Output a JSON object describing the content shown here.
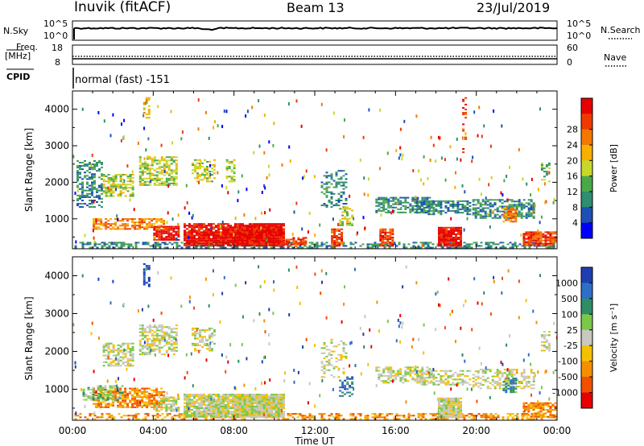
{
  "header": {
    "title": "Inuvik (fitACF)",
    "beam": "Beam 13",
    "date": "23/Jul/2019"
  },
  "nsky_panel": {
    "left_label": "N.Sky",
    "left_ticks": [
      "10^5",
      "10^0"
    ],
    "right_ticks": [
      "10^5",
      "10^0"
    ],
    "right_label": "N.Search"
  },
  "freq_panel": {
    "left_label_top": "Freq.",
    "left_label_unit": "[MHz]",
    "left_ticks": [
      "18",
      "8"
    ],
    "right_ticks": [
      "60",
      "0"
    ],
    "right_label": "Nave"
  },
  "cpid": {
    "label": "CPID",
    "value": "normal (fast) -151"
  },
  "chart_data": [
    {
      "type": "heatmap",
      "name": "power",
      "ylabel": "Slant Range [km]",
      "x_ticks": [
        "00:00",
        "04:00",
        "08:00",
        "12:00",
        "16:00",
        "20:00",
        "00:00"
      ],
      "y_ticks": [
        "1000",
        "2000",
        "3000",
        "4000"
      ],
      "xlim_hours": [
        0,
        24
      ],
      "ylim_km": [
        180,
        4500
      ],
      "colorbar": {
        "label": "Power [dB]",
        "ticks": [
          "4",
          "8",
          "12",
          "16",
          "20",
          "24",
          "28"
        ],
        "colors": [
          "#0000ff",
          "#1f4fb4",
          "#2f8d70",
          "#4aa84a",
          "#c8d82a",
          "#f5b000",
          "#f47800",
          "#ee3a00",
          "#e60000"
        ]
      },
      "blobs": [
        {
          "h0": 0.1,
          "h1": 24,
          "r0": 190,
          "r1": 330,
          "level": 2,
          "density": 0.5
        },
        {
          "h0": 4.0,
          "h1": 5.3,
          "r0": 400,
          "r1": 800,
          "level": 8,
          "density": 0.8
        },
        {
          "h0": 5.5,
          "h1": 10.5,
          "r0": 250,
          "r1": 850,
          "level": 8,
          "density": 0.9
        },
        {
          "h0": 8.0,
          "h1": 10.3,
          "r0": 250,
          "r1": 800,
          "level": 8,
          "density": 0.95
        },
        {
          "h0": 10.3,
          "h1": 11.6,
          "r0": 230,
          "r1": 500,
          "level": 7,
          "density": 0.7
        },
        {
          "h0": 12.8,
          "h1": 13.3,
          "r0": 240,
          "r1": 700,
          "level": 7,
          "density": 0.8
        },
        {
          "h0": 15.2,
          "h1": 15.8,
          "r0": 240,
          "r1": 700,
          "level": 7,
          "density": 0.8
        },
        {
          "h0": 18.1,
          "h1": 19.2,
          "r0": 240,
          "r1": 780,
          "level": 8,
          "density": 0.95
        },
        {
          "h0": 22.3,
          "h1": 23.9,
          "r0": 250,
          "r1": 650,
          "level": 7,
          "density": 0.8
        },
        {
          "h0": 1.0,
          "h1": 4.5,
          "r0": 700,
          "r1": 1000,
          "level": 6,
          "density": 0.7
        },
        {
          "h0": 0.2,
          "h1": 1.5,
          "r0": 1300,
          "r1": 2600,
          "level": 2,
          "density": 0.5
        },
        {
          "h0": 1.5,
          "h1": 3.0,
          "r0": 1600,
          "r1": 2200,
          "level": 4,
          "density": 0.6
        },
        {
          "h0": 3.3,
          "h1": 5.2,
          "r0": 1900,
          "r1": 2700,
          "level": 4,
          "density": 0.6
        },
        {
          "h0": 5.9,
          "h1": 7.0,
          "r0": 2000,
          "r1": 2600,
          "level": 4,
          "density": 0.5
        },
        {
          "h0": 7.6,
          "h1": 8.0,
          "r0": 2000,
          "r1": 2600,
          "level": 4,
          "density": 0.6
        },
        {
          "h0": 12.3,
          "h1": 13.6,
          "r0": 1300,
          "r1": 2300,
          "level": 2,
          "density": 0.35
        },
        {
          "h0": 13.2,
          "h1": 13.8,
          "r0": 800,
          "r1": 1300,
          "level": 4,
          "density": 0.6
        },
        {
          "h0": 15.0,
          "h1": 17.8,
          "r0": 1150,
          "r1": 1600,
          "level": 2,
          "density": 0.6
        },
        {
          "h0": 17.0,
          "h1": 19.7,
          "r0": 1100,
          "r1": 1500,
          "level": 2,
          "density": 0.6
        },
        {
          "h0": 19.8,
          "h1": 22.8,
          "r0": 1000,
          "r1": 1500,
          "level": 2,
          "density": 0.6
        },
        {
          "h0": 21.3,
          "h1": 21.9,
          "r0": 900,
          "r1": 1300,
          "level": 6,
          "density": 0.8
        },
        {
          "h0": 3.5,
          "h1": 3.8,
          "r0": 3700,
          "r1": 4300,
          "level": 5,
          "density": 0.5
        },
        {
          "h0": 23.2,
          "h1": 23.6,
          "r0": 2000,
          "r1": 2500,
          "level": 3,
          "density": 0.5
        },
        {
          "h0": 19.3,
          "h1": 19.5,
          "r0": 2800,
          "r1": 4300,
          "level": 7,
          "density": 0.3
        }
      ]
    },
    {
      "type": "heatmap",
      "name": "velocity",
      "ylabel": "Slant Range [km]",
      "xlabel": "Time UT",
      "x_ticks": [
        "00:00",
        "04:00",
        "08:00",
        "12:00",
        "16:00",
        "20:00",
        "00:00"
      ],
      "y_ticks": [
        "1000",
        "2000",
        "3000",
        "4000"
      ],
      "xlim_hours": [
        0,
        24
      ],
      "ylim_km": [
        180,
        4500
      ],
      "colorbar": {
        "label": "Velocity [m s⁻¹]",
        "ticks": [
          "1000",
          "500",
          "100",
          "25",
          "-25",
          "-100",
          "-500",
          "-1000"
        ],
        "colors": [
          "#1f3fb0",
          "#2f6ec6",
          "#2e8d64",
          "#7ac84a",
          "#c8c8c0",
          "#f5c000",
          "#f49000",
          "#f05000",
          "#e60000"
        ]
      },
      "blobs": [
        {
          "h0": 0.1,
          "h1": 24,
          "r0": 190,
          "r1": 330,
          "level": 6,
          "density": 0.5
        },
        {
          "h0": 5.5,
          "h1": 10.5,
          "r0": 250,
          "r1": 850,
          "level": 4,
          "density": 0.9
        },
        {
          "h0": 8.0,
          "h1": 10.3,
          "r0": 250,
          "r1": 800,
          "level": 4,
          "density": 0.95
        },
        {
          "h0": 18.1,
          "h1": 19.2,
          "r0": 240,
          "r1": 780,
          "level": 4,
          "density": 0.95
        },
        {
          "h0": 1.0,
          "h1": 4.5,
          "r0": 500,
          "r1": 1000,
          "level": 6,
          "density": 0.7
        },
        {
          "h0": 0.5,
          "h1": 2.5,
          "r0": 700,
          "r1": 1100,
          "level": 3,
          "density": 0.4
        },
        {
          "h0": 4.0,
          "h1": 5.3,
          "r0": 400,
          "r1": 800,
          "level": 4,
          "density": 0.6
        },
        {
          "h0": 1.5,
          "h1": 3.0,
          "r0": 1600,
          "r1": 2200,
          "level": 4,
          "density": 0.6
        },
        {
          "h0": 3.3,
          "h1": 5.2,
          "r0": 1900,
          "r1": 2700,
          "level": 4,
          "density": 0.6
        },
        {
          "h0": 5.9,
          "h1": 7.0,
          "r0": 2000,
          "r1": 2600,
          "level": 4,
          "density": 0.5
        },
        {
          "h0": 12.3,
          "h1": 13.6,
          "r0": 1300,
          "r1": 2300,
          "level": 4,
          "density": 0.3
        },
        {
          "h0": 13.2,
          "h1": 13.8,
          "r0": 800,
          "r1": 1300,
          "level": 1,
          "density": 0.5
        },
        {
          "h0": 15.0,
          "h1": 17.8,
          "r0": 1150,
          "r1": 1600,
          "level": 4,
          "density": 0.5
        },
        {
          "h0": 17.0,
          "h1": 19.7,
          "r0": 1100,
          "r1": 1500,
          "level": 4,
          "density": 0.5
        },
        {
          "h0": 19.8,
          "h1": 22.8,
          "r0": 1000,
          "r1": 1500,
          "level": 4,
          "density": 0.5
        },
        {
          "h0": 21.3,
          "h1": 21.9,
          "r0": 900,
          "r1": 1300,
          "level": 2,
          "density": 0.8
        },
        {
          "h0": 22.3,
          "h1": 23.9,
          "r0": 250,
          "r1": 650,
          "level": 6,
          "density": 0.7
        },
        {
          "h0": 3.5,
          "h1": 3.8,
          "r0": 3700,
          "r1": 4300,
          "level": 0,
          "density": 0.5
        },
        {
          "h0": 23.2,
          "h1": 23.6,
          "r0": 2000,
          "r1": 2500,
          "level": 4,
          "density": 0.5
        }
      ]
    }
  ]
}
